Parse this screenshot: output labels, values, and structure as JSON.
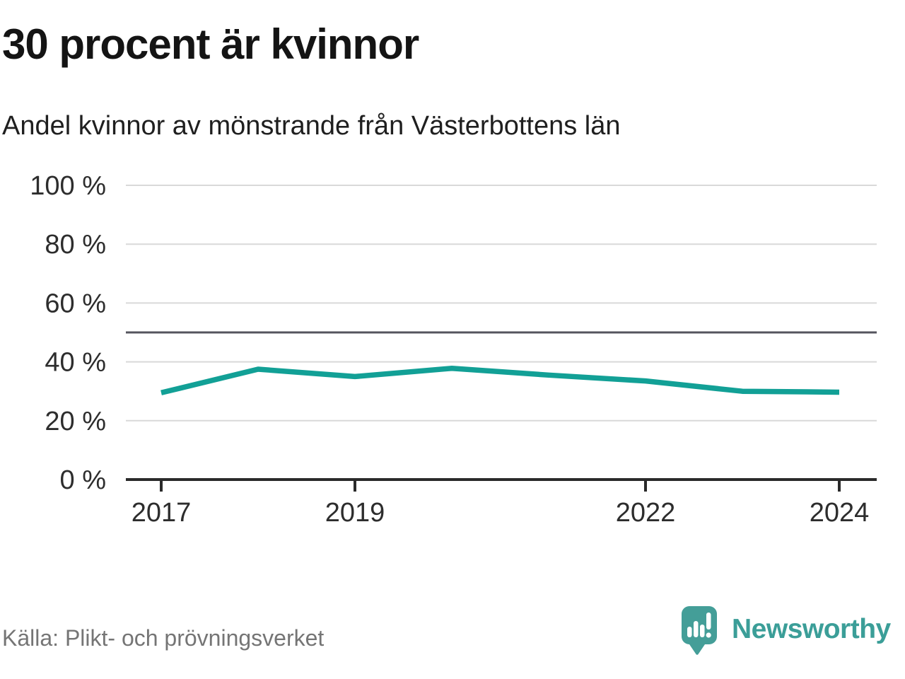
{
  "header": {
    "title": "30 procent är kvinnor",
    "subtitle": "Andel kvinnor av mönstrande från Västerbottens län"
  },
  "footer": {
    "source": "Källa: Plikt- och prövningsverket",
    "brand": "Newsworthy",
    "logo_icon": "speech-bubble-bar-chart-exclamation"
  },
  "colors": {
    "line": "#12a096",
    "grid": "#d9d9d9",
    "reference_line": "#55555e",
    "axis": "#2a2a2a",
    "tick_label": "#2d2d2d",
    "brand_teal": "#3b9e98",
    "source_text": "#757575"
  },
  "chart_data": {
    "type": "line",
    "x": [
      2017,
      2018,
      2019,
      2020,
      2021,
      2022,
      2023,
      2024
    ],
    "values": [
      29.5,
      37.5,
      35.0,
      37.8,
      35.5,
      33.5,
      30.0,
      29.7
    ],
    "series_name": "Andel kvinnor av mönstrande",
    "title": "30 procent är kvinnor",
    "subtitle": "Andel kvinnor av mönstrande från Västerbottens län",
    "ylim": [
      0,
      100
    ],
    "yticks": [
      0,
      20,
      40,
      60,
      80,
      100
    ],
    "ytick_suffix": " %",
    "xticks": [
      2017,
      2019,
      2022,
      2024
    ],
    "reference_line": 50,
    "grid": "horizontal",
    "legend": "none"
  }
}
